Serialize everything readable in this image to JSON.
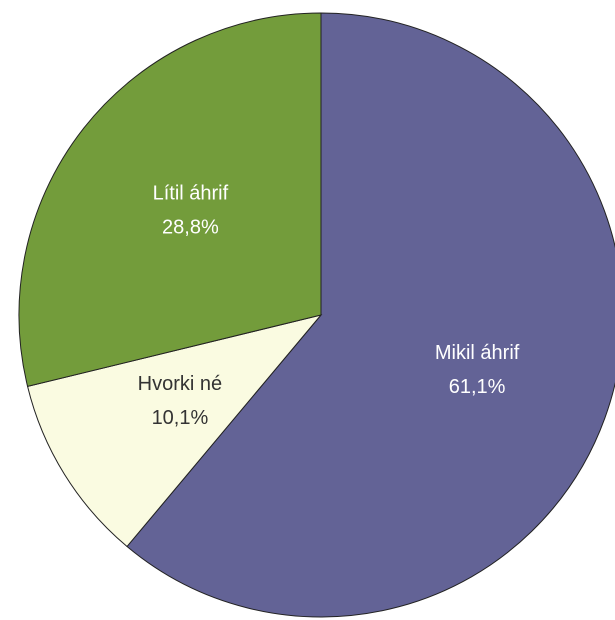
{
  "chart_data": {
    "type": "pie",
    "categories": [
      "Mikil áhrif",
      "Hvorki né",
      "Lítil áhrif"
    ],
    "values": [
      61.1,
      10.1,
      28.8
    ],
    "value_labels": [
      "61,1%",
      "10,1%",
      "28,8%"
    ],
    "colors": [
      "#636396",
      "#fafbe1",
      "#739c3b"
    ],
    "label_colors": [
      "#ffffff",
      "#333333",
      "#ffffff"
    ]
  }
}
